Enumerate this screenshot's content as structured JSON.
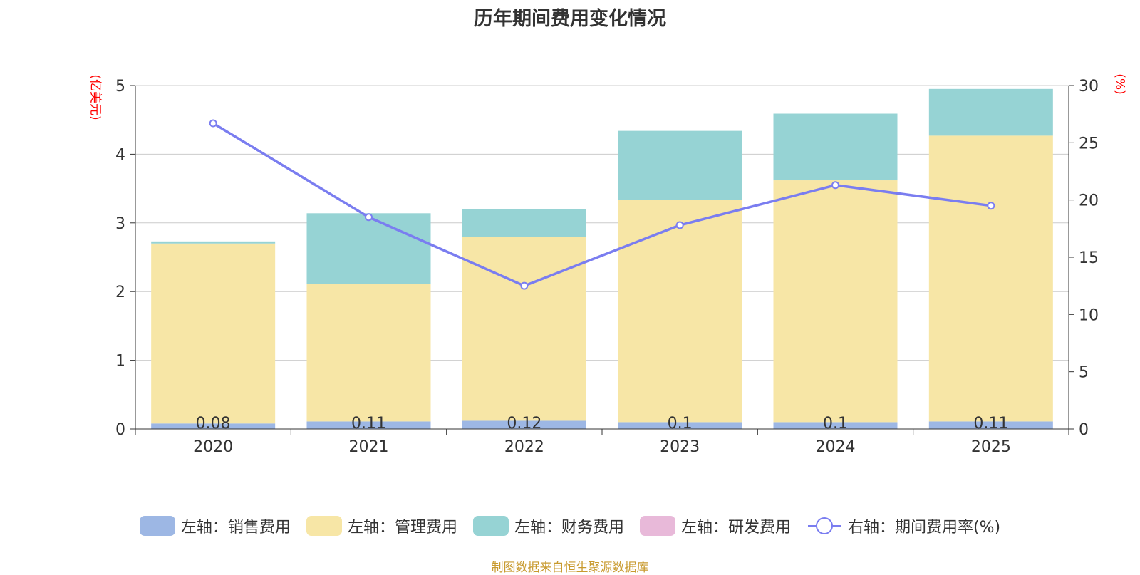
{
  "chart_data": {
    "type": "bar",
    "title": "历年期间费用变化情况",
    "categories": [
      "2020",
      "2021",
      "2022",
      "2023",
      "2024",
      "2025"
    ],
    "ylabel": "(亿美元)",
    "y2label": "(%)",
    "ylim": [
      0,
      5
    ],
    "y2lim": [
      0,
      30
    ],
    "yticks": [
      0,
      1,
      2,
      3,
      4,
      5
    ],
    "y2ticks": [
      0,
      5,
      10,
      15,
      20,
      25,
      30
    ],
    "grid": true,
    "series": [
      {
        "name": "左轴：销售费用",
        "type": "bar",
        "axis": "left",
        "color": "#9db7e4",
        "values": [
          0.08,
          0.11,
          0.12,
          0.1,
          0.1,
          0.11
        ],
        "labels": [
          "0.08",
          "0.11",
          "0.12",
          "0.1",
          "0.1",
          "0.11"
        ]
      },
      {
        "name": "左轴：管理费用",
        "type": "bar",
        "axis": "left",
        "color": "#f7e6a6",
        "values": [
          2.62,
          2.0,
          2.68,
          3.24,
          3.52,
          4.16
        ]
      },
      {
        "name": "左轴：财务费用",
        "type": "bar",
        "axis": "left",
        "color": "#96d3d4",
        "values": [
          0.03,
          1.03,
          0.4,
          1.0,
          0.97,
          0.68
        ]
      },
      {
        "name": "左轴：研发费用",
        "type": "bar",
        "axis": "left",
        "color": "#e8b9d9",
        "values": [
          0,
          0,
          0,
          0,
          0,
          0
        ]
      },
      {
        "name": "右轴：期间费用率(%)",
        "type": "line",
        "axis": "right",
        "color": "#7a7df0",
        "values": [
          26.7,
          18.5,
          12.5,
          17.8,
          21.3,
          19.5
        ]
      }
    ],
    "legend_position": "bottom"
  },
  "source": "制图数据来自恒生聚源数据库"
}
